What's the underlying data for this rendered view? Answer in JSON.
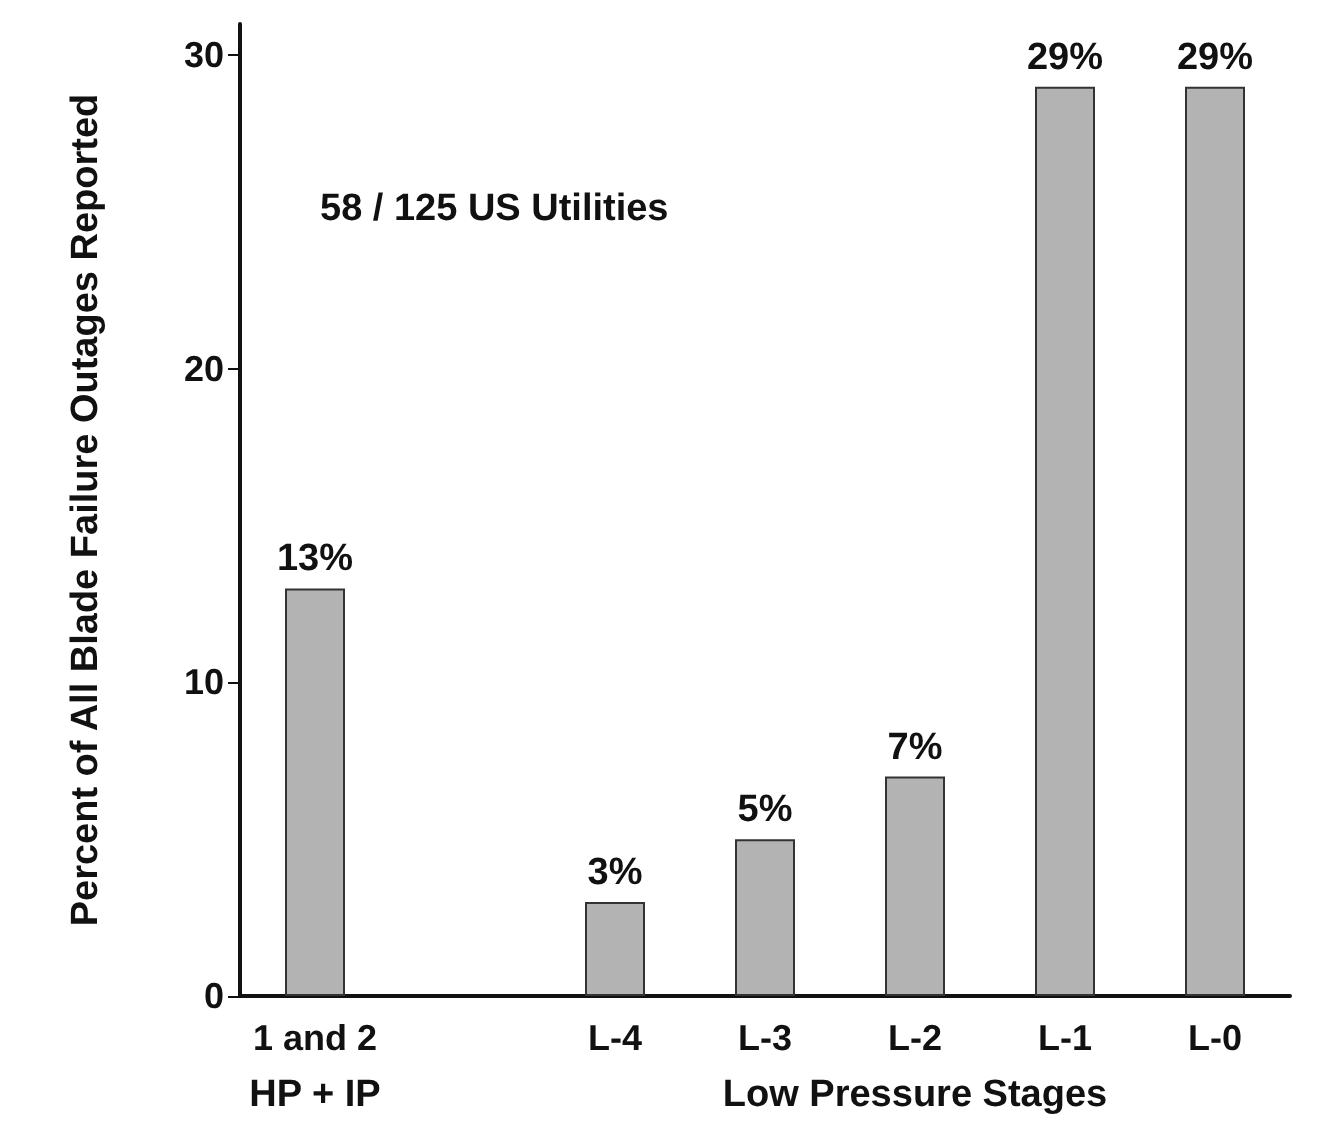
{
  "chart_data": {
    "type": "bar",
    "ylabel": "Percent of All Blade Failure Outages Reported",
    "categories": [
      "1 and 2",
      null,
      "L-4",
      "L-3",
      "L-2",
      "L-1",
      "L-0"
    ],
    "values": [
      13,
      null,
      3,
      5,
      7,
      29,
      29
    ],
    "value_labels": [
      "13%",
      null,
      "3%",
      "5%",
      "7%",
      "29%",
      "29%"
    ],
    "color": "#b3b3b3",
    "ylim": [
      0,
      31
    ],
    "yticks": [
      0,
      10,
      20,
      30
    ],
    "grid": false,
    "annotations": [
      "58 / 125 US Utilities",
      "HP + IP",
      "Low Pressure Stages"
    ]
  }
}
